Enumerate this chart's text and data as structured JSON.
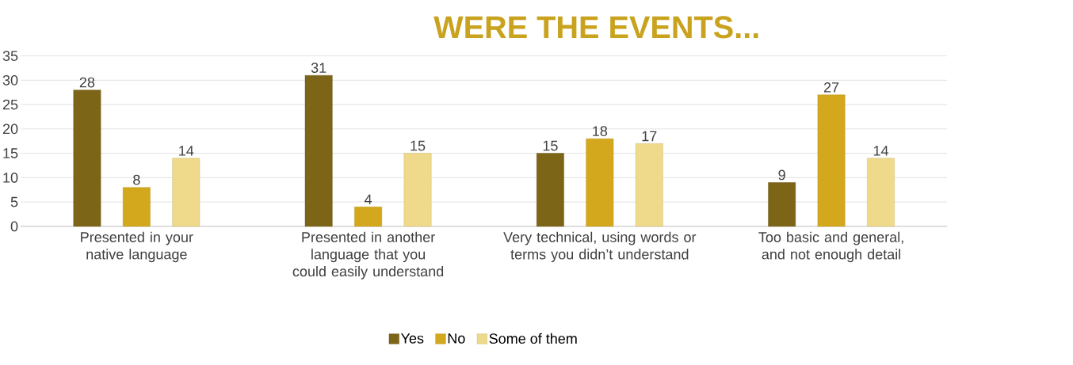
{
  "chart_data": {
    "type": "bar",
    "title": "WERE THE EVENTS...",
    "categories": [
      "Presented in your native language",
      "Presented in another language that you could easily understand",
      "Very technical, using words or terms you didn’t understand",
      "Too basic and general, and not enough detail"
    ],
    "series": [
      {
        "name": "Yes",
        "color": "#7d6518",
        "values": [
          28,
          31,
          15,
          9
        ]
      },
      {
        "name": "No",
        "color": "#d4a81c",
        "values": [
          8,
          4,
          18,
          27
        ]
      },
      {
        "name": "Some of them",
        "color": "#efd98a",
        "values": [
          14,
          15,
          17,
          14
        ]
      }
    ],
    "ylim": [
      0,
      35
    ],
    "yticks": [
      0,
      5,
      10,
      15,
      20,
      25,
      30,
      35
    ],
    "grid": "y",
    "legend": "bottom",
    "data_labels": true
  }
}
